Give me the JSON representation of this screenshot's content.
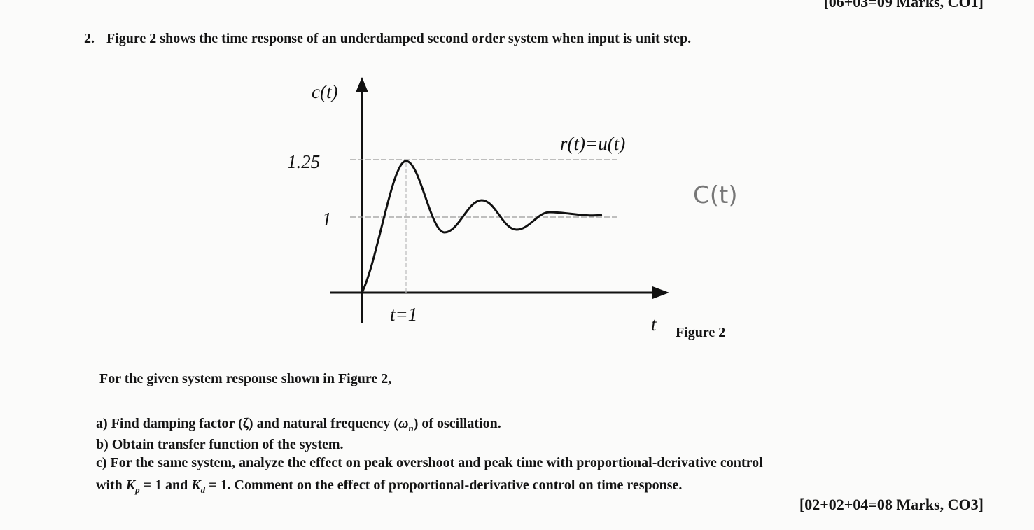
{
  "header": {
    "marks": "[06+03=09 Marks, CO1]"
  },
  "question": {
    "number": "2.",
    "text": "Figure 2 shows the time response of an underdamped second order system when input is unit step."
  },
  "figure": {
    "y_label": "c(t)",
    "level_high": "1.25",
    "level_one": "1",
    "input_label": "r(t)=u(t)",
    "peak_time": "t=1",
    "x_label": "t",
    "caption": "Figure 2"
  },
  "handwriting": "C(t)",
  "prompt": "For the given system response shown in Figure 2,",
  "parts": [
    {
      "label": "a)",
      "text": [
        "Find damping factor (ζ) and natural frequency (",
        "ω",
        "n",
        ") of oscillation."
      ]
    },
    {
      "label": "b)",
      "text": [
        "Obtain transfer function of the system."
      ]
    },
    {
      "label": "c)",
      "text": [
        "For the same system, analyze the effect on peak overshoot and peak time with proportional-derivative control",
        "with ",
        "K",
        "p",
        " = 1 and ",
        "K",
        "d",
        " = 1. Comment on the effect of proportional-derivative control on time response."
      ]
    }
  ],
  "marks": "[02+02+04=08 Marks, CO3]"
}
